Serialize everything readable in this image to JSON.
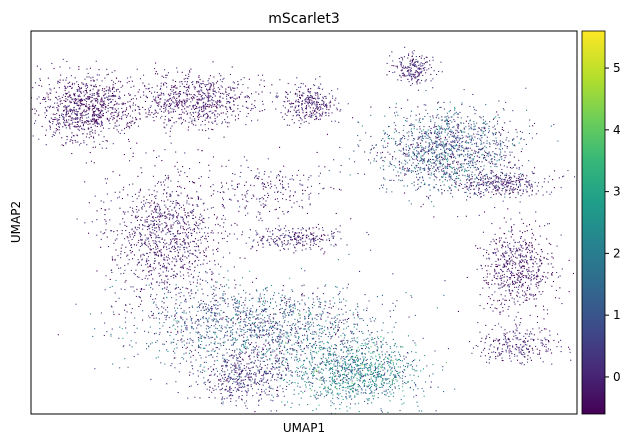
{
  "chart_data": {
    "type": "scatter",
    "title": "mScarlet3",
    "xlabel": "UMAP1",
    "ylabel": "UMAP2",
    "x_ticks": [],
    "y_ticks": [],
    "colormap": "viridis",
    "colorbar": {
      "range": [
        -0.6,
        5.6
      ],
      "ticks": [
        0,
        1,
        2,
        3,
        4,
        5
      ],
      "tick_labels": [
        "0",
        "1",
        "2",
        "3",
        "4",
        "5"
      ]
    },
    "grid": false,
    "legend": "none",
    "points_note_clusters": [
      {
        "x": 1.0,
        "y": 8.0,
        "value": 0.0
      },
      {
        "x": 3.2,
        "y": 8.3,
        "value": 0.0
      },
      {
        "x": 7.8,
        "y": 7.0,
        "value": 1.3
      },
      {
        "x": 2.5,
        "y": 4.6,
        "value": 0.1
      },
      {
        "x": 6.2,
        "y": 1.4,
        "value": 1.8
      },
      {
        "x": 3.8,
        "y": 2.1,
        "value": 1.2
      },
      {
        "x": 9.0,
        "y": 3.8,
        "value": 0.0
      },
      {
        "x": 7.2,
        "y": 9.0,
        "value": 0.1
      }
    ]
  },
  "colors": {
    "viridis": [
      "#440154",
      "#482878",
      "#3e4a89",
      "#31688e",
      "#26828e",
      "#1f9e89",
      "#35b779",
      "#6ece58",
      "#b5de2b",
      "#fde725"
    ]
  }
}
